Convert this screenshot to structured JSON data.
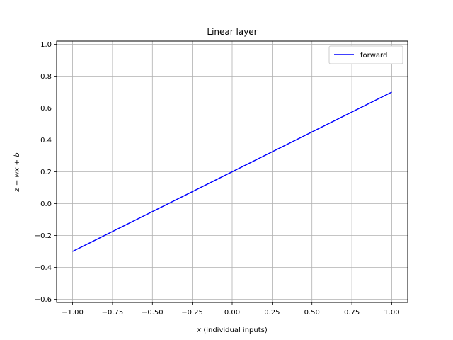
{
  "chart_data": {
    "type": "line",
    "title": "Linear layer",
    "xlabel": {
      "var": "x",
      "text": " (individual inputs)"
    },
    "ylabel": "z = wx + b",
    "xlim": [
      -1.1,
      1.1
    ],
    "ylim": [
      -0.62,
      1.02
    ],
    "xticks": [
      -1.0,
      -0.75,
      -0.5,
      -0.25,
      0.0,
      0.25,
      0.5,
      0.75,
      1.0
    ],
    "xtick_labels": [
      "−1.00",
      "−0.75",
      "−0.50",
      "−0.25",
      "0.00",
      "0.25",
      "0.50",
      "0.75",
      "1.00"
    ],
    "yticks": [
      -0.6,
      -0.4,
      -0.2,
      0.0,
      0.2,
      0.4,
      0.6,
      0.8,
      1.0
    ],
    "ytick_labels": [
      "−0.6",
      "−0.4",
      "−0.2",
      "0.0",
      "0.2",
      "0.4",
      "0.6",
      "0.8",
      "1.0"
    ],
    "grid": true,
    "legend": "top-right",
    "series": [
      {
        "name": "forward",
        "color": "#0000ff",
        "x": [
          -1.0,
          1.0
        ],
        "y": [
          -0.3,
          0.7
        ]
      }
    ]
  }
}
